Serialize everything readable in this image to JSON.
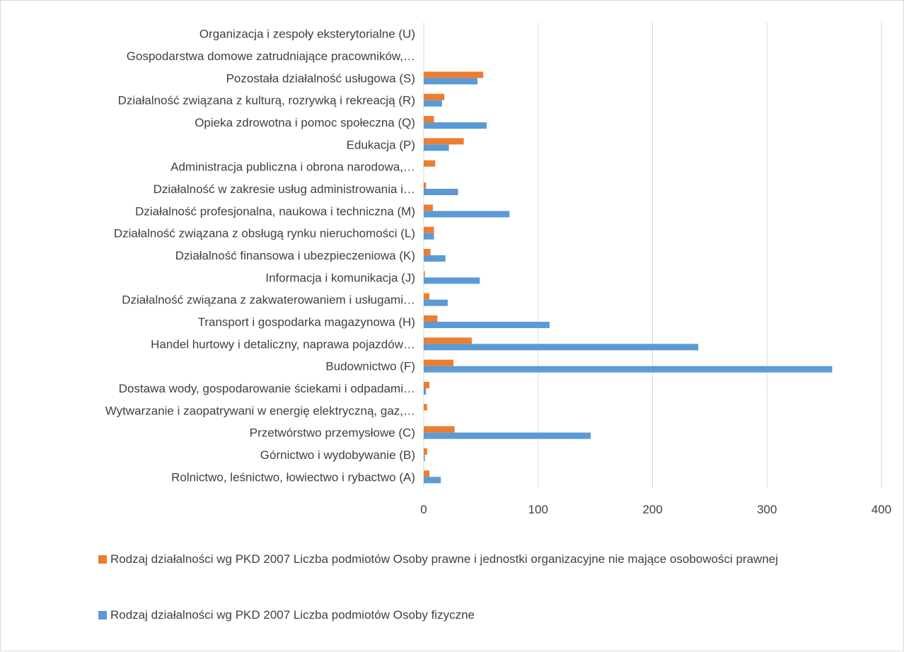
{
  "chart_data": {
    "type": "bar",
    "orientation": "horizontal",
    "categories": [
      "Organizacja i zespoły eksterytorialne (U)",
      "Gospodarstwa domowe zatrudniające pracowników,…",
      "Pozostała działalność usługowa (S)",
      "Działalność związana z kulturą, rozrywką i rekreacją (R)",
      "Opieka zdrowotna i pomoc społeczna (Q)",
      "Edukacja (P)",
      "Administracja publiczna i obrona narodowa,…",
      "Działalność w zakresie usług administrowania i…",
      "Działalność profesjonalna, naukowa  i techniczna (M)",
      "Działalność związana z obsługą rynku nieruchomości (L)",
      "Działalność finansowa i ubezpieczeniowa (K)",
      "Informacja i komunikacja (J)",
      "Działalność związana z zakwaterowaniem   i usługami…",
      "Transport i gospodarka magazynowa (H)",
      "Handel hurtowy i detaliczny, naprawa pojazdów…",
      "Budownictwo (F)",
      "Dostawa wody, gospodarowanie ściekami i odpadami…",
      "Wytwarzanie i zaopatrywani w energię elektryczną, gaz,…",
      "Przetwórstwo przemysłowe (C)",
      "Górnictwo i wydobywanie (B)",
      "Rolnictwo, leśnictwo, łowiectwo i rybactwo (A)"
    ],
    "series": [
      {
        "name": "Rodzaj działalności wg PKD 2007 Liczba podmiotów Osoby prawne i jednostki organizacyjne nie mające osobowości prawnej",
        "color": "#ED7D31",
        "values": [
          0,
          0,
          52,
          18,
          9,
          35,
          10,
          2,
          8,
          9,
          6,
          1,
          5,
          12,
          42,
          26,
          5,
          3,
          27,
          3,
          5
        ]
      },
      {
        "name": "Rodzaj działalności wg PKD 2007 Liczba podmiotów Osoby fizyczne",
        "color": "#5B9BD5",
        "values": [
          0,
          0,
          47,
          16,
          55,
          22,
          0,
          30,
          75,
          9,
          19,
          49,
          21,
          110,
          240,
          357,
          2,
          0,
          146,
          1,
          15
        ]
      }
    ],
    "xlim": [
      0,
      400
    ],
    "xticks": [
      0,
      100,
      200,
      300,
      400
    ],
    "grid": true,
    "legend_position": "bottom"
  }
}
